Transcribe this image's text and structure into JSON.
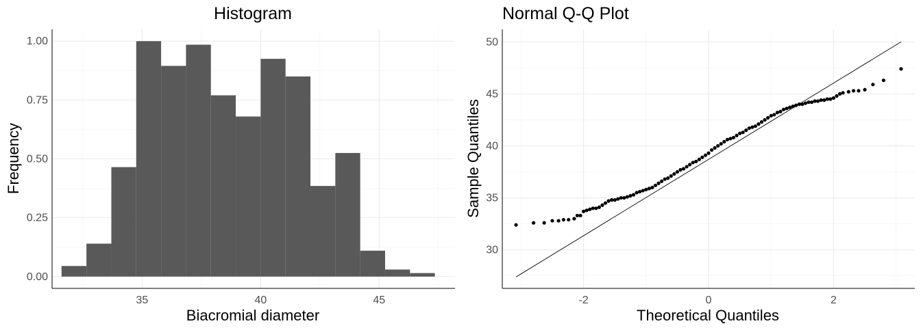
{
  "chart_data": [
    {
      "type": "bar",
      "title": "Histogram",
      "xlabel": "Biacromial diameter",
      "ylabel": "Frequency",
      "xlim": [
        31.2,
        48.2
      ],
      "ylim": [
        -0.05,
        1.05
      ],
      "x_ticks": [
        35,
        40,
        45
      ],
      "y_ticks": [
        0.0,
        0.25,
        0.5,
        0.75,
        1.0
      ],
      "y_tick_labels": [
        "0.00",
        "0.25",
        "0.50",
        "0.75",
        "1.00"
      ],
      "grid": true,
      "bar_color": "#595959",
      "bins": [
        {
          "start": 31.6,
          "end": 32.65,
          "value": 0.045
        },
        {
          "start": 32.65,
          "end": 33.7,
          "value": 0.14
        },
        {
          "start": 33.7,
          "end": 34.75,
          "value": 0.465
        },
        {
          "start": 34.75,
          "end": 35.8,
          "value": 1.0
        },
        {
          "start": 35.8,
          "end": 36.85,
          "value": 0.895
        },
        {
          "start": 36.85,
          "end": 37.9,
          "value": 0.985
        },
        {
          "start": 37.9,
          "end": 38.95,
          "value": 0.77
        },
        {
          "start": 38.95,
          "end": 40.0,
          "value": 0.68
        },
        {
          "start": 40.0,
          "end": 41.05,
          "value": 0.925
        },
        {
          "start": 41.05,
          "end": 42.1,
          "value": 0.85
        },
        {
          "start": 42.1,
          "end": 43.15,
          "value": 0.385
        },
        {
          "start": 43.15,
          "end": 44.2,
          "value": 0.525
        },
        {
          "start": 44.2,
          "end": 45.25,
          "value": 0.11
        },
        {
          "start": 45.25,
          "end": 46.3,
          "value": 0.03
        },
        {
          "start": 46.3,
          "end": 47.35,
          "value": 0.015
        }
      ]
    },
    {
      "type": "scatter",
      "title": "Normal Q-Q Plot",
      "xlabel": "Theoretical Quantiles",
      "ylabel": "Sample Quantiles",
      "xlim": [
        -3.3,
        3.3
      ],
      "ylim": [
        26.3,
        51.2
      ],
      "x_ticks": [
        -2,
        0,
        2
      ],
      "y_ticks": [
        30,
        35,
        40,
        45,
        50
      ],
      "grid": true,
      "reference_line": {
        "x": [
          -3.08,
          3.08
        ],
        "y": [
          27.4,
          50.0
        ]
      },
      "points": {
        "x": [
          -3.08,
          -2.8,
          -2.63,
          -2.5,
          -2.4,
          -2.32,
          -2.24,
          -2.15,
          -2.1,
          -2.05,
          -2.0,
          -1.95,
          -1.9,
          -1.85,
          -1.8,
          -1.75,
          -1.7,
          -1.65,
          -1.6,
          -1.55,
          -1.5,
          -1.45,
          -1.4,
          -1.35,
          -1.3,
          -1.25,
          -1.2,
          -1.15,
          -1.1,
          -1.05,
          -1.0,
          -0.95,
          -0.9,
          -0.85,
          -0.8,
          -0.75,
          -0.7,
          -0.65,
          -0.6,
          -0.55,
          -0.5,
          -0.45,
          -0.4,
          -0.35,
          -0.3,
          -0.25,
          -0.2,
          -0.15,
          -0.1,
          -0.05,
          0.0,
          0.05,
          0.1,
          0.15,
          0.2,
          0.25,
          0.3,
          0.35,
          0.4,
          0.45,
          0.5,
          0.55,
          0.6,
          0.65,
          0.7,
          0.75,
          0.8,
          0.85,
          0.9,
          0.95,
          1.0,
          1.05,
          1.1,
          1.15,
          1.2,
          1.25,
          1.3,
          1.35,
          1.4,
          1.45,
          1.5,
          1.55,
          1.6,
          1.65,
          1.7,
          1.75,
          1.8,
          1.85,
          1.9,
          1.95,
          2.0,
          2.05,
          2.1,
          2.15,
          2.24,
          2.32,
          2.4,
          2.5,
          2.63,
          2.8,
          3.08
        ],
        "y": [
          32.4,
          32.6,
          32.6,
          32.8,
          32.8,
          32.9,
          32.9,
          33.0,
          33.3,
          33.3,
          33.7,
          33.8,
          33.9,
          34.0,
          34.0,
          34.1,
          34.3,
          34.5,
          34.7,
          34.8,
          34.8,
          34.9,
          35.0,
          35.0,
          35.1,
          35.2,
          35.3,
          35.5,
          35.6,
          35.7,
          35.8,
          35.9,
          36.0,
          36.2,
          36.4,
          36.6,
          36.8,
          36.9,
          37.1,
          37.3,
          37.5,
          37.7,
          37.8,
          38.0,
          38.2,
          38.4,
          38.5,
          38.7,
          38.9,
          39.1,
          39.3,
          39.6,
          39.8,
          40.0,
          40.2,
          40.4,
          40.6,
          40.7,
          40.8,
          41.0,
          41.2,
          41.3,
          41.5,
          41.7,
          41.8,
          41.9,
          42.1,
          42.3,
          42.5,
          42.7,
          42.9,
          43.0,
          43.2,
          43.3,
          43.5,
          43.6,
          43.7,
          43.8,
          43.9,
          44.0,
          44.0,
          44.1,
          44.2,
          44.2,
          44.3,
          44.3,
          44.4,
          44.4,
          44.5,
          44.5,
          44.6,
          44.8,
          45.0,
          45.1,
          45.2,
          45.3,
          45.3,
          45.4,
          45.9,
          46.3,
          47.4
        ]
      }
    }
  ]
}
